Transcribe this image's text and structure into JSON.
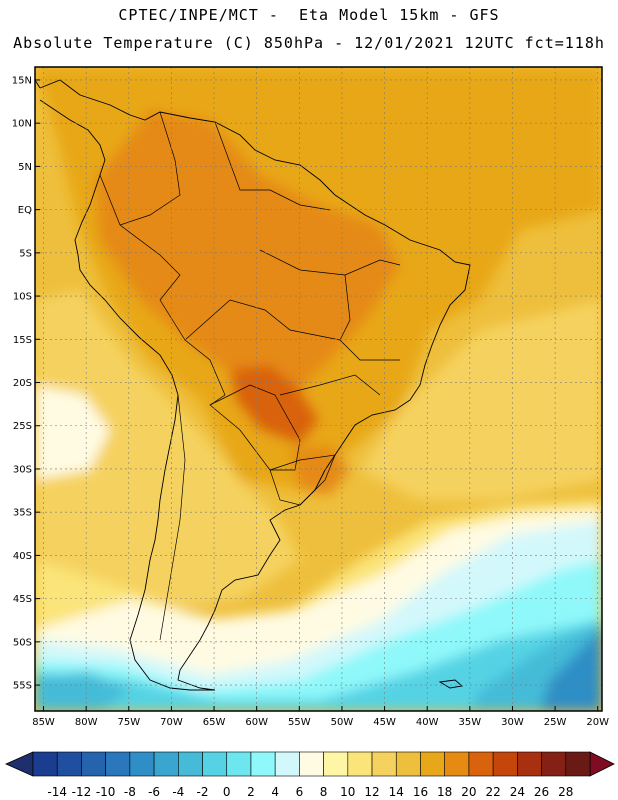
{
  "header": {
    "line1": "CPTEC/INPE/MCT -  Eta Model 15km - GFS",
    "line2": "Absolute Temperature (C) 850hPa - 12/01/2021 12UTC fct=118h"
  },
  "map": {
    "region": "South America",
    "lon_range": [
      -86,
      -19.5
    ],
    "lat_range": [
      -58,
      17
    ],
    "lat_ticks": [
      "15N",
      "10N",
      "5N",
      "EQ",
      "5S",
      "10S",
      "15S",
      "20S",
      "25S",
      "30S",
      "35S",
      "40S",
      "45S",
      "50S",
      "55S"
    ],
    "lon_ticks": [
      "85W",
      "80W",
      "75W",
      "70W",
      "65W",
      "60W",
      "55W",
      "50W",
      "45W",
      "40W",
      "35W",
      "30W",
      "25W",
      "20W"
    ]
  },
  "colorbar": {
    "labels": [
      "-14",
      "-12",
      "-10",
      "-8",
      "-6",
      "-4",
      "-2",
      "0",
      "2",
      "4",
      "6",
      "8",
      "10",
      "12",
      "14",
      "16",
      "18",
      "20",
      "22",
      "24",
      "26",
      "28"
    ],
    "colors": [
      "#1a3d8f",
      "#1f4f9e",
      "#2563ad",
      "#2a78bb",
      "#2f8ec6",
      "#3aa6cf",
      "#45bbd8",
      "#55d3e4",
      "#6ee6ef",
      "#8ff8fa",
      "#d3f8fb",
      "#fffbe3",
      "#fff6a5",
      "#fbe479",
      "#f5d25f",
      "#eebf3c",
      "#e8a719",
      "#e58a12",
      "#d9620d",
      "#c4460b",
      "#a63010",
      "#842114",
      "#6a1a14"
    ],
    "under_color": "#1f2f6e",
    "over_color": "#800c24"
  }
}
